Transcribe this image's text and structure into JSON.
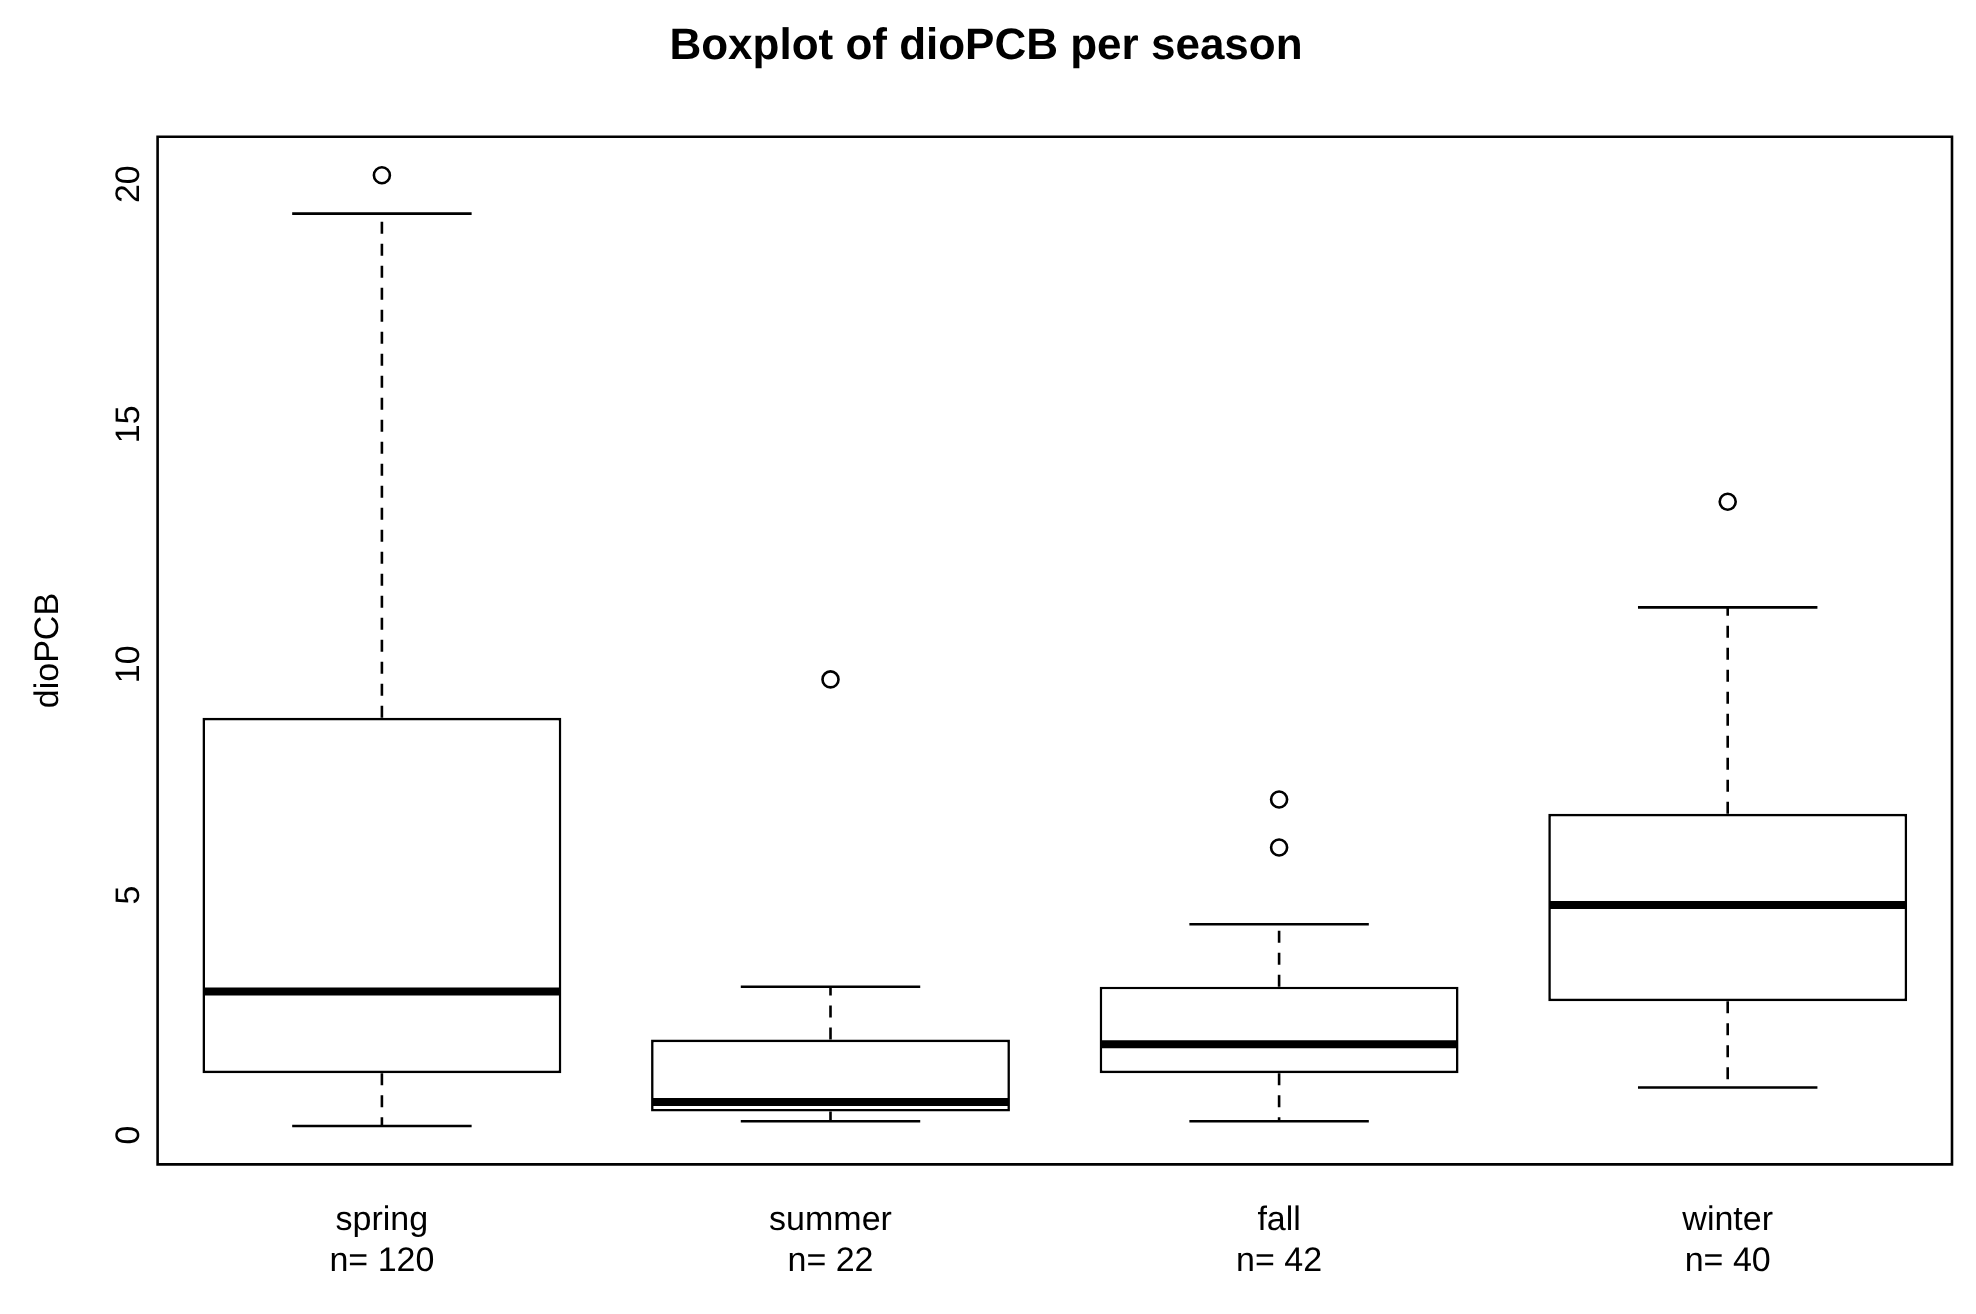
{
  "chart_data": {
    "type": "box",
    "title": "Boxplot of dioPCB per season",
    "ylabel": "dioPCB",
    "categories": [
      "spring\nn= 120",
      "summer\nn= 22",
      "fall\nn= 42",
      "winter\nn= 40"
    ],
    "boxes": [
      {
        "low": 0.2,
        "q1": 1.3,
        "median": 3.0,
        "q3": 8.7,
        "high": 19.2,
        "outliers": [
          20.0
        ]
      },
      {
        "low": 0.3,
        "q1": 0.5,
        "median": 0.7,
        "q3": 2.0,
        "high": 3.1,
        "outliers": [
          9.5
        ]
      },
      {
        "low": 0.3,
        "q1": 1.3,
        "median": 1.9,
        "q3": 3.1,
        "high": 4.4,
        "outliers": [
          7.0,
          6.0
        ]
      },
      {
        "low": 1.0,
        "q1": 2.8,
        "median": 4.8,
        "q3": 6.7,
        "high": 11.0,
        "outliers": [
          13.2
        ]
      }
    ],
    "ylim": [
      -0.6,
      20.8
    ],
    "yticks": [
      0,
      5,
      10,
      15,
      20
    ]
  }
}
